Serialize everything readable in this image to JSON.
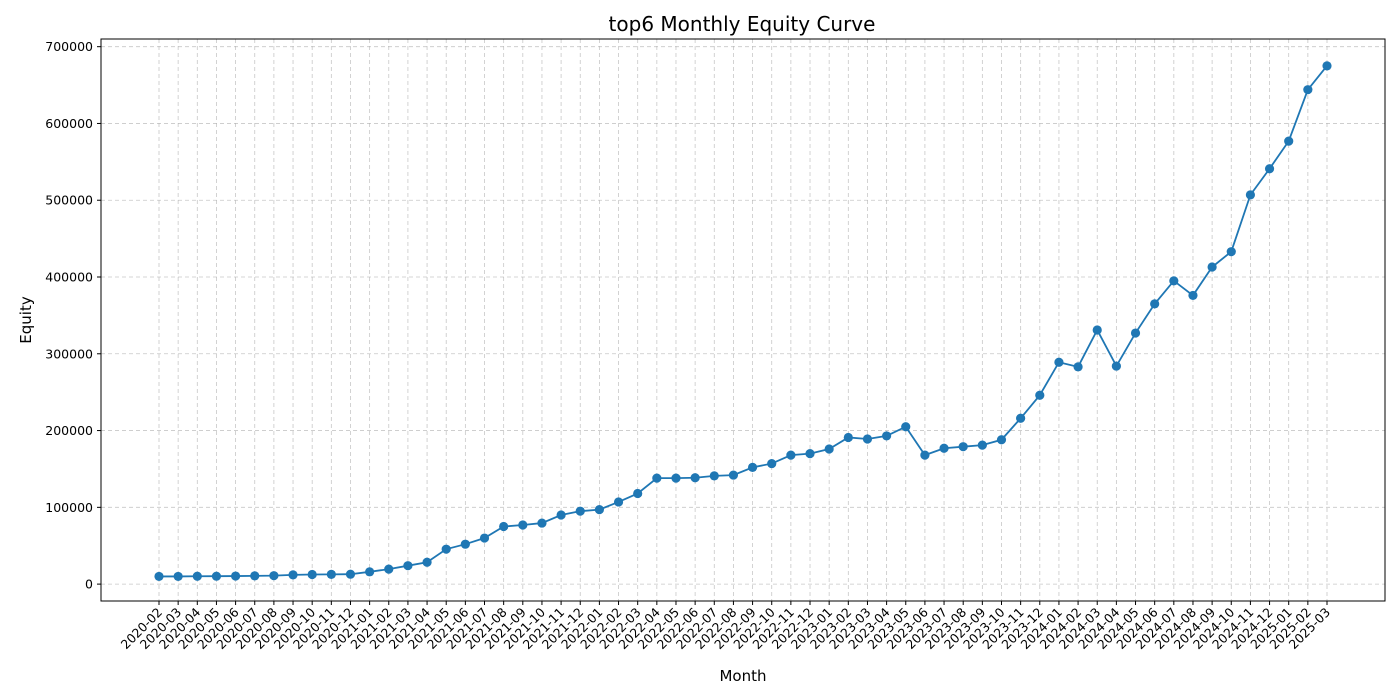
{
  "chart_data": {
    "type": "line",
    "title": "top6 Monthly Equity Curve",
    "xlabel": "Month",
    "ylabel": "Equity",
    "ylim": [
      -22000,
      710000
    ],
    "yticks": [
      0,
      100000,
      200000,
      300000,
      400000,
      500000,
      600000,
      700000
    ],
    "ytick_labels": [
      "0",
      "100000",
      "200000",
      "300000",
      "400000",
      "500000",
      "600000",
      "700000"
    ],
    "grid": true,
    "line_color": "#1f77b4",
    "categories": [
      "2020-02",
      "2020-03",
      "2020-04",
      "2020-05",
      "2020-06",
      "2020-07",
      "2020-08",
      "2020-09",
      "2020-10",
      "2020-11",
      "2020-12",
      "2021-01",
      "2021-02",
      "2021-03",
      "2021-04",
      "2021-05",
      "2021-06",
      "2021-07",
      "2021-08",
      "2021-09",
      "2021-10",
      "2021-11",
      "2021-12",
      "2022-01",
      "2022-02",
      "2022-03",
      "2022-04",
      "2022-05",
      "2022-06",
      "2022-07",
      "2022-08",
      "2022-09",
      "2022-10",
      "2022-11",
      "2022-12",
      "2023-01",
      "2023-02",
      "2023-03",
      "2023-04",
      "2023-05",
      "2023-06",
      "2023-07",
      "2023-08",
      "2023-09",
      "2023-10",
      "2023-11",
      "2023-12",
      "2024-01",
      "2024-02",
      "2024-03",
      "2024-04",
      "2024-05",
      "2024-06",
      "2024-07",
      "2024-08",
      "2024-09",
      "2024-10",
      "2024-11",
      "2024-12",
      "2025-01",
      "2025-02",
      "2025-03"
    ],
    "series": [
      {
        "values": [
          10000,
          10000,
          10200,
          10300,
          10500,
          10700,
          11000,
          12000,
          12500,
          12700,
          12900,
          16000,
          19500,
          24000,
          28500,
          45500,
          52000,
          60000,
          75000,
          77000,
          79500,
          90000,
          95000,
          97000,
          107000,
          118000,
          138000,
          138000,
          138500,
          141000,
          142000,
          152000,
          157000,
          168000,
          170000,
          176000,
          191000,
          189000,
          193000,
          205000,
          168000,
          177000,
          179000,
          181000,
          188000,
          216000,
          246000,
          289000,
          283000,
          331000,
          284000,
          327000,
          365000,
          395000,
          376000,
          413000,
          433000,
          507000,
          541000,
          577000,
          644000,
          675000
        ]
      }
    ]
  }
}
